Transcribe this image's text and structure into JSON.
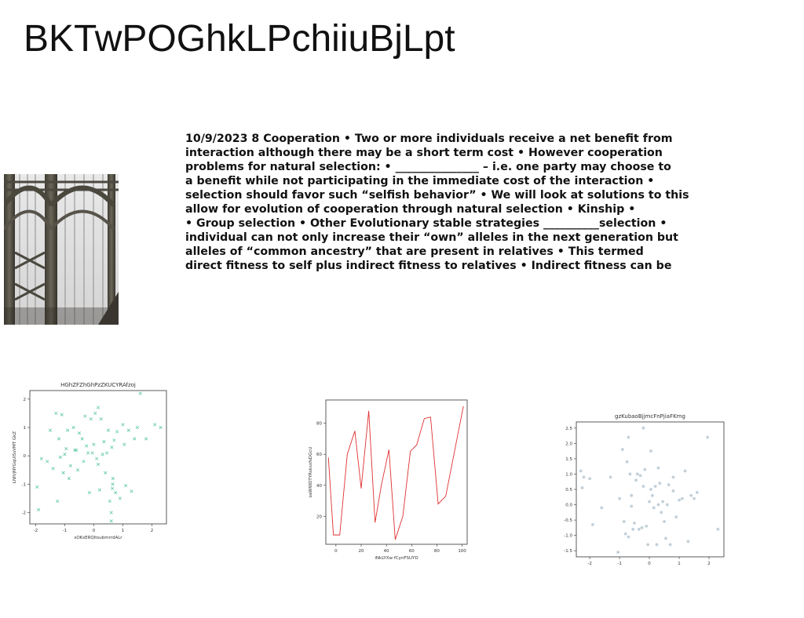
{
  "page": {
    "title": "BKTwPOGhkLPchiiuBjLpt"
  },
  "document": {
    "lines": [
      "10/9/2023 8 Cooperation • Two or more individuals receive a net benefit from",
      "interaction although there may be a short term cost • However cooperation",
      "problems for natural selection: • _______________ – i.e. one party may choose to",
      "a benefit while not participating in the immediate cost of the interaction •",
      "selection should favor such “selfish behavior” • We will look at solutions to this",
      "allow for evolution of cooperation through natural selection • Kinship •",
      "• Group selection • Other Evolutionary stable strategies __________selection •",
      "individual can not only increase their “own” alleles in the next generation but",
      "alleles of “common ancestry” that are present in relatives • This termed",
      "direct fitness to self plus indirect fitness to relatives • Indirect fitness can be"
    ]
  },
  "chart_data": [
    {
      "type": "scatter",
      "title": "HGhZFZhGhPzZKUCYRAfzoj",
      "xlabel": "sOKsERQltsubmrrdALr",
      "ylabel": "LNIVjNYGqUISsVMT GkZ",
      "marker": "x",
      "color": "#5fc9a0",
      "xlim": [
        -2.2,
        2.5
      ],
      "ylim": [
        -2.4,
        2.3
      ],
      "xticks": [
        -2,
        -1,
        0,
        1,
        2
      ],
      "yticks": [
        -2,
        -1,
        0,
        1,
        2
      ],
      "x": [
        -1.9,
        -1.95,
        -1.8,
        -1.6,
        -1.5,
        -1.4,
        -1.3,
        -1.2,
        -1.1,
        -1.05,
        -1.0,
        -0.9,
        -0.85,
        -0.8,
        -0.7,
        -0.6,
        -0.55,
        -0.5,
        -0.4,
        -0.35,
        -0.3,
        -0.25,
        -0.2,
        -0.15,
        -0.1,
        -0.05,
        0.0,
        0.05,
        0.1,
        0.15,
        0.2,
        0.25,
        0.3,
        0.35,
        0.4,
        0.45,
        0.5,
        0.55,
        0.6,
        0.65,
        0.7,
        0.75,
        0.8,
        0.9,
        1.0,
        1.1,
        1.2,
        1.3,
        1.4,
        1.5,
        1.6,
        1.8,
        2.1,
        2.3,
        -1.25,
        -1.15,
        -0.65,
        0.15,
        0.6,
        0.62,
        0.64,
        0.66,
        1.05,
        -0.95
      ],
      "y": [
        -1.9,
        -1.1,
        -0.1,
        -0.2,
        0.9,
        -0.45,
        1.5,
        0.6,
        1.45,
        -0.6,
        0.05,
        0.9,
        -0.8,
        -0.35,
        1.0,
        0.2,
        -0.5,
        0.8,
        0.6,
        -0.2,
        1.4,
        0.35,
        0.1,
        -1.3,
        1.3,
        0.1,
        0.4,
        1.5,
        -0.1,
        1.7,
        -1.2,
        1.3,
        0.05,
        0.5,
        -0.6,
        0.1,
        0.9,
        -1.6,
        -2.3,
        -1.0,
        0.55,
        -1.3,
        0.85,
        -1.5,
        1.1,
        -1.05,
        0.9,
        -1.25,
        0.6,
        1.0,
        2.2,
        0.6,
        1.1,
        1.0,
        -1.6,
        -0.05,
        0.2,
        -0.3,
        -2.0,
        0.3,
        -1.15,
        -0.8,
        0.4,
        0.25
      ]
    },
    {
      "type": "line",
      "title": "",
      "xlabel": "iNkLYXw fCynFSUYD",
      "ylabel": "oaWWDTYRsksxfsDGcU",
      "color": "#e03030",
      "xlim": [
        -8,
        104
      ],
      "ylim": [
        2,
        95
      ],
      "xticks": [
        0,
        20,
        40,
        60,
        80,
        100
      ],
      "yticks": [
        20,
        40,
        60,
        80
      ],
      "x": [
        -6,
        -2,
        3,
        9,
        15,
        20,
        26,
        31,
        36,
        42,
        47,
        53,
        59,
        64,
        70,
        75,
        81,
        87,
        101
      ],
      "y": [
        58,
        8,
        8,
        60,
        75,
        38,
        88,
        16,
        40,
        63,
        5,
        20,
        62,
        66,
        83,
        84,
        28,
        33,
        91
      ]
    },
    {
      "type": "scatter",
      "title": "gzKubaoBjjmcFnPjiaFKmg",
      "xlabel": "",
      "ylabel": "",
      "marker": "o",
      "color": "#b8c8d2",
      "xlim": [
        -2.45,
        2.5
      ],
      "ylim": [
        -1.7,
        2.7
      ],
      "xticks": [
        -2,
        -1,
        0,
        1,
        2
      ],
      "yticks": [
        -1.5,
        -1.0,
        -0.5,
        0.0,
        0.5,
        1.0,
        1.5,
        2.0,
        2.5
      ],
      "x": [
        -2.3,
        -2.25,
        -2.2,
        -2.0,
        -1.9,
        -1.6,
        -1.3,
        -1.05,
        -1.0,
        -0.9,
        -0.85,
        -0.8,
        -0.75,
        -0.7,
        -0.65,
        -0.6,
        -0.55,
        -0.5,
        -0.45,
        -0.4,
        -0.35,
        -0.3,
        -0.25,
        -0.2,
        -0.15,
        -0.1,
        -0.05,
        0.0,
        0.05,
        0.1,
        0.15,
        0.2,
        0.25,
        0.3,
        0.35,
        0.4,
        0.45,
        0.5,
        0.55,
        0.6,
        0.65,
        0.7,
        0.8,
        0.9,
        1.0,
        1.1,
        1.2,
        1.3,
        1.4,
        1.5,
        1.6,
        1.95,
        2.3,
        -0.7,
        -0.6,
        0.05,
        0.3,
        -0.2,
        0.8
      ],
      "y": [
        1.1,
        0.55,
        0.9,
        0.85,
        -0.65,
        -0.1,
        0.9,
        -1.55,
        0.2,
        1.8,
        -0.55,
        -0.95,
        1.4,
        -1.05,
        1.0,
        0.3,
        -0.8,
        -0.6,
        0.8,
        1.0,
        -0.8,
        0.95,
        -0.75,
        0.6,
        1.15,
        -0.7,
        -1.3,
        0.1,
        0.5,
        0.3,
        -0.1,
        0.6,
        -1.3,
        0.0,
        0.7,
        -0.25,
        0.1,
        -0.55,
        -1.1,
        0.0,
        0.65,
        -1.3,
        0.9,
        -0.4,
        0.15,
        0.2,
        1.1,
        -1.2,
        0.3,
        0.2,
        0.4,
        2.2,
        -0.8,
        2.2,
        -0.05,
        1.75,
        1.2,
        2.5,
        0.45
      ]
    }
  ]
}
